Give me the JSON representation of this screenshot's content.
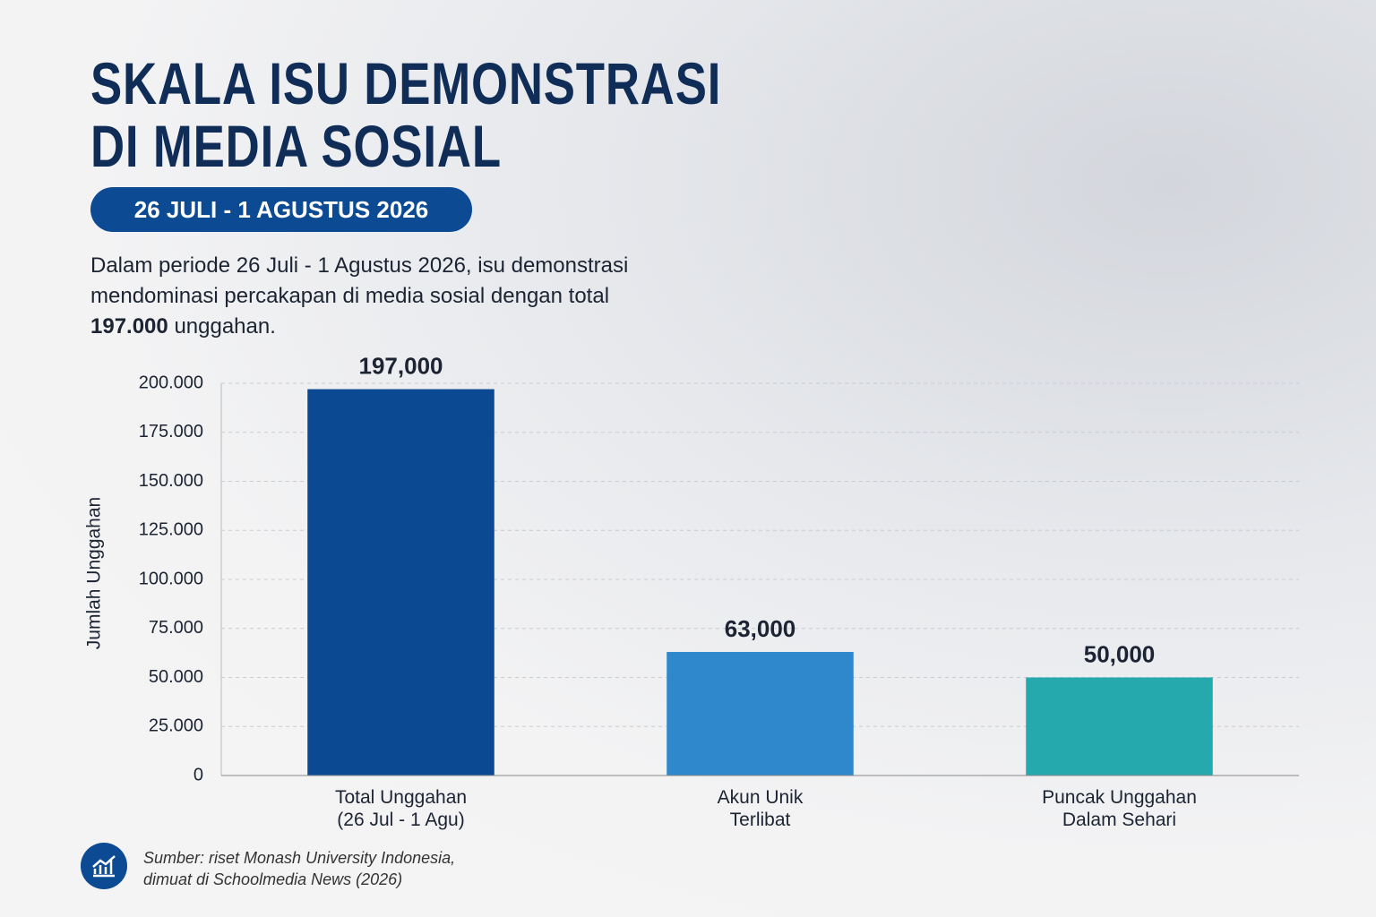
{
  "chart_data": {
    "type": "bar",
    "title": [
      "SKALA ISU DEMONSTRASI",
      "DI MEDIA SOSIAL"
    ],
    "subtitle": "26 JULI - 1 AGUSTUS 2026",
    "description": {
      "text": "Dalam periode 26 Juli - 1 Agustus 2026, isu demonstrasi mendominasi percakapan di media sosial dengan total",
      "highlight": "197.000",
      "suffix": "unggahan."
    },
    "y_label": "Jumlah Unggahan",
    "categories": [
      "Total Unggahan\n(26 Jul - 1 Agu)",
      "Akun Unik\nTerlibat",
      "Puncak Unggahan\nDalam Sehari"
    ],
    "values": [
      197000,
      63000,
      50000
    ],
    "value_labels": [
      "197,000",
      "63,000",
      "50,000"
    ],
    "colors": [
      "#0b4a93",
      "#2f88cc",
      "#26a9ad"
    ],
    "ylim": [
      0,
      200000
    ],
    "yticks": [
      0,
      {
        "value": 25000,
        "label": "25.000"
      },
      {
        "value": 50000,
        "label": "50.000"
      },
      {
        "value": 75000,
        "label": "75.000"
      },
      {
        "value": 100000,
        "label": "100.000"
      },
      {
        "value": 125000,
        "label": "125.000"
      },
      {
        "value": 150000,
        "label": "150.000"
      },
      {
        "value": 175000,
        "label": "175.000"
      },
      {
        "value": 200000,
        "label": "200.000"
      }
    ],
    "grid": true,
    "source": "Sumber: riset Monash University Indonesia,\ndimuat di Schoolmedia News (2026)"
  }
}
